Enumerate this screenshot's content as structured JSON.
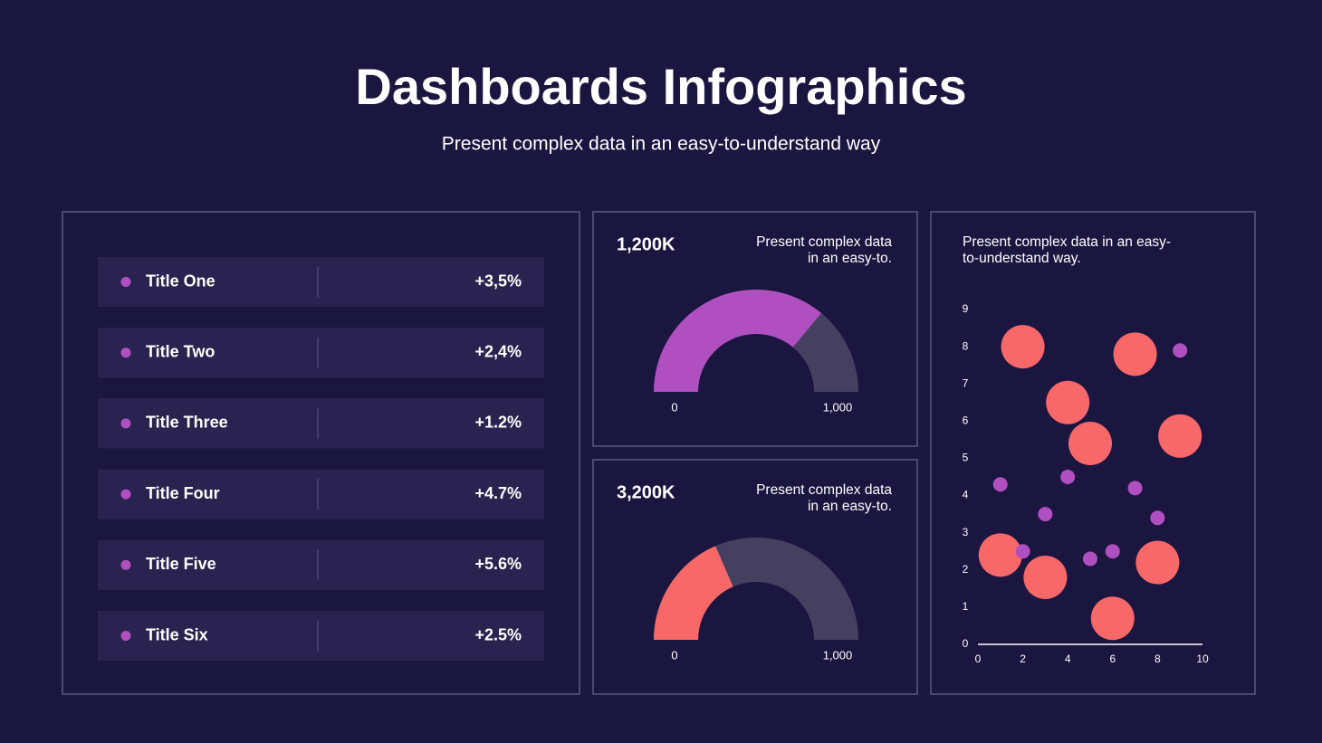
{
  "header": {
    "title": "Dashboards Infographics",
    "subtitle": "Present complex data in an easy-to-understand way"
  },
  "table": {
    "rows": [
      [
        "Title One",
        "+3,5%"
      ],
      [
        "Title Two",
        "+2,4%"
      ],
      [
        "Title Three",
        "+1.2%"
      ],
      [
        "Title Four",
        "+4.7%"
      ],
      [
        "Title Five",
        "+5.6%"
      ],
      [
        "Title Six",
        "+2.5%"
      ]
    ]
  },
  "chart_data": [
    {
      "type": "gauge",
      "label": "1,200K",
      "description": [
        "Present complex data",
        "in an easy-to."
      ],
      "value": 720,
      "color": "#b04fc0",
      "xlim": [
        0,
        1000
      ],
      "xticks": [
        0,
        {
          "value": 1000,
          "label": "1,000"
        }
      ]
    },
    {
      "type": "gauge",
      "label": "3,200K",
      "description": [
        "Present complex data",
        "in an easy-to."
      ],
      "value": 370,
      "color": "#f96869",
      "xlim": [
        0,
        1000
      ],
      "xticks": [
        0,
        {
          "value": 1000,
          "label": "1,000"
        }
      ]
    },
    {
      "type": "scatter",
      "description": [
        "Present complex data in an easy-",
        "to-understand way."
      ],
      "xlim": [
        0,
        10
      ],
      "ylim": [
        0,
        9
      ],
      "xticks": [
        0,
        2,
        4,
        6,
        8,
        10
      ],
      "yticks": [
        0,
        1,
        2,
        3,
        4,
        5,
        6,
        7,
        8,
        9
      ],
      "series": [
        {
          "color": "#f96869",
          "x": [
            2,
            7,
            4,
            5,
            9,
            1,
            3,
            8,
            6
          ],
          "values": [
            8.0,
            7.8,
            6.5,
            5.4,
            5.6,
            2.4,
            1.8,
            2.2,
            0.7
          ]
        },
        {
          "color": "#b04fc0",
          "x": [
            9,
            1,
            4,
            7,
            3,
            8,
            2,
            5,
            6
          ],
          "values": [
            7.9,
            4.3,
            4.5,
            4.2,
            3.5,
            3.4,
            2.5,
            2.3,
            2.5
          ]
        }
      ]
    }
  ]
}
